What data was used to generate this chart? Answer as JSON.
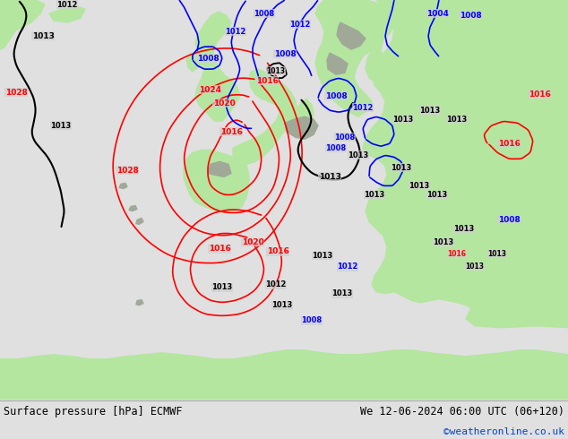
{
  "title_left": "Surface pressure [hPa] ECMWF",
  "title_right": "We 12-06-2024 06:00 UTC (06+120)",
  "copyright": "©weatheronline.co.uk",
  "sea_color": "#d0cece",
  "land_color": "#b4e6a0",
  "mountain_color": "#a0a898",
  "footer_bg": "#e0e0e0",
  "footer_text_color": "#000000",
  "copyright_color": "#0044cc",
  "fig_width": 6.34,
  "fig_height": 4.9,
  "dpi": 100
}
